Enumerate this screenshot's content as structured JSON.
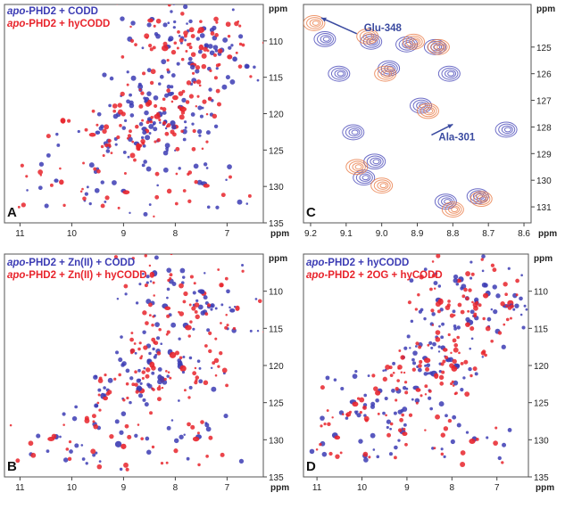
{
  "colors": {
    "series_1": "#3c3cb4",
    "series_2": "#e8242c",
    "orange": "#e8743c",
    "annotation": "#3a4aa0"
  },
  "chart_data": [
    {
      "panel": "A",
      "type": "scatter",
      "xlabel": "ppm",
      "ylabel": "ppm",
      "xlim": [
        11.3,
        6.3
      ],
      "ylim": [
        105,
        135
      ],
      "xticks": [
        11,
        10,
        9,
        8,
        7
      ],
      "yticks": [
        110,
        115,
        120,
        125,
        130,
        135
      ],
      "legend": {
        "placement": "top-left",
        "entries": [
          {
            "prefix": "apo",
            "rest": "-PHD2 + CODD",
            "color": "#3c3cb4"
          },
          {
            "prefix": "apo",
            "rest": "-PHD2 + hyCODD",
            "color": "#e8242c"
          }
        ]
      },
      "series": [
        {
          "name": "apo-PHD2 + CODD",
          "color": "#3c3cb4",
          "points": [
            [
              8.45,
              107.0
            ],
            [
              7.45,
              108.3
            ],
            [
              7.4,
              110.6
            ],
            [
              6.85,
              112.5
            ],
            [
              8.15,
              110.8
            ],
            [
              7.7,
              113.1
            ],
            [
              8.1,
              117.3
            ],
            [
              8.55,
              118.1
            ],
            [
              8.3,
              120.1
            ],
            [
              8.05,
              121.3
            ],
            [
              7.9,
              119.1
            ],
            [
              8.6,
              122.1
            ],
            [
              8.75,
              124.1
            ],
            [
              9.5,
              122.6
            ],
            [
              10.3,
              129.2
            ],
            [
              9.0,
              130.6
            ],
            [
              7.45,
              129.6
            ]
          ]
        },
        {
          "name": "apo-PHD2 + hyCODD",
          "color": "#e8242c",
          "points": [
            [
              8.48,
              107.2
            ],
            [
              7.5,
              108.5
            ],
            [
              7.5,
              110.9
            ],
            [
              6.95,
              112.2
            ],
            [
              8.2,
              111.0
            ],
            [
              7.65,
              113.3
            ],
            [
              8.0,
              117.8
            ],
            [
              8.5,
              118.5
            ],
            [
              8.35,
              120.4
            ],
            [
              8.0,
              121.8
            ],
            [
              7.85,
              119.4
            ],
            [
              8.55,
              122.4
            ],
            [
              8.7,
              124.4
            ],
            [
              9.6,
              122.9
            ],
            [
              10.2,
              129.4
            ],
            [
              8.95,
              130.8
            ],
            [
              7.4,
              129.9
            ]
          ]
        }
      ]
    },
    {
      "panel": "B",
      "type": "scatter",
      "xlabel": "ppm",
      "ylabel": "ppm",
      "xlim": [
        11.3,
        6.3
      ],
      "ylim": [
        105,
        135
      ],
      "xticks": [
        11,
        10,
        9,
        8,
        7
      ],
      "yticks": [
        110,
        115,
        120,
        125,
        130,
        135
      ],
      "legend": {
        "placement": "top-left",
        "entries": [
          {
            "prefix": "apo",
            "rest": "-PHD2 + Zn(II) + CODD",
            "color": "#3c3cb4"
          },
          {
            "prefix": "apo",
            "rest": "-PHD2 + Zn(II) + hyCODD",
            "color": "#e8242c"
          }
        ]
      },
      "series": [
        {
          "name": "apo-PHD2 + Zn(II) + CODD",
          "color": "#3c3cb4",
          "points": [
            [
              8.4,
              107.6
            ],
            [
              7.5,
              110.0
            ],
            [
              6.9,
              112.6
            ],
            [
              8.2,
              112.0
            ],
            [
              7.8,
              114.6
            ],
            [
              8.1,
              118.2
            ],
            [
              8.5,
              119.5
            ],
            [
              8.3,
              121.6
            ],
            [
              7.9,
              120.1
            ],
            [
              8.7,
              123.1
            ],
            [
              9.4,
              124.1
            ],
            [
              10.3,
              129.6
            ],
            [
              9.1,
              130.6
            ],
            [
              7.55,
              129.6
            ]
          ]
        },
        {
          "name": "apo-PHD2 + Zn(II) + hyCODD",
          "color": "#e8242c",
          "points": [
            [
              8.45,
              107.8
            ],
            [
              7.45,
              110.3
            ],
            [
              6.8,
              112.3
            ],
            [
              8.15,
              112.3
            ],
            [
              7.75,
              114.9
            ],
            [
              8.05,
              118.6
            ],
            [
              8.45,
              119.9
            ],
            [
              8.25,
              121.9
            ],
            [
              7.85,
              120.4
            ],
            [
              8.65,
              123.4
            ],
            [
              9.35,
              124.4
            ],
            [
              10.4,
              129.9
            ],
            [
              9.0,
              130.9
            ],
            [
              7.6,
              129.9
            ]
          ]
        }
      ]
    },
    {
      "panel": "C",
      "type": "scatter",
      "xlabel": "ppm",
      "ylabel": "ppm",
      "xlim": [
        9.22,
        8.58
      ],
      "ylim": [
        123.4,
        131.6
      ],
      "xticks": [
        9.2,
        9.1,
        9.0,
        8.9,
        8.8,
        8.7,
        8.6
      ],
      "yticks": [
        125,
        126,
        127,
        128,
        129,
        130,
        131
      ],
      "annotations": [
        {
          "text": "Glu-348",
          "x": 9.05,
          "y": 124.4
        },
        {
          "text": "Ala-301",
          "x": 8.84,
          "y": 128.5
        }
      ],
      "series": [
        {
          "name": "contours-blue",
          "color": "#3c3cb4",
          "points": [
            [
              9.16,
              124.7
            ],
            [
              9.03,
              124.8
            ],
            [
              8.93,
              124.9
            ],
            [
              8.85,
              125.0
            ],
            [
              9.12,
              126.0
            ],
            [
              8.98,
              125.8
            ],
            [
              8.81,
              126.0
            ],
            [
              8.89,
              127.2
            ],
            [
              9.08,
              128.2
            ],
            [
              8.65,
              128.1
            ],
            [
              9.02,
              129.3
            ],
            [
              9.05,
              129.9
            ],
            [
              8.82,
              130.8
            ],
            [
              8.73,
              130.6
            ]
          ]
        },
        {
          "name": "contours-orange",
          "color": "#e8743c",
          "points": [
            [
              9.19,
              124.1
            ],
            [
              9.04,
              124.6
            ],
            [
              8.91,
              124.8
            ],
            [
              8.84,
              125.0
            ],
            [
              8.99,
              126.0
            ],
            [
              8.87,
              127.4
            ],
            [
              9.07,
              129.5
            ],
            [
              9.0,
              130.2
            ],
            [
              8.8,
              131.1
            ],
            [
              8.72,
              130.7
            ]
          ]
        }
      ]
    },
    {
      "panel": "D",
      "type": "scatter",
      "xlabel": "ppm",
      "ylabel": "ppm",
      "xlim": [
        11.3,
        6.3
      ],
      "ylim": [
        105,
        135
      ],
      "xticks": [
        11,
        10,
        9,
        8,
        7
      ],
      "yticks": [
        110,
        115,
        120,
        125,
        130,
        135
      ],
      "legend": {
        "placement": "top-left",
        "entries": [
          {
            "prefix": "apo",
            "rest": "-PHD2 + hyCODD",
            "color": "#3c3cb4"
          },
          {
            "prefix": "apo",
            "rest": "-PHD2 + 2OG + hyCODD",
            "color": "#e8242c"
          }
        ]
      },
      "series": [
        {
          "name": "apo-PHD2 + hyCODD",
          "color": "#3c3cb4",
          "points": [
            [
              7.8,
              108.4
            ],
            [
              7.2,
              110.3
            ],
            [
              6.8,
              112.0
            ],
            [
              8.3,
              111.2
            ],
            [
              7.6,
              114.2
            ],
            [
              8.2,
              117.6
            ],
            [
              8.6,
              119.0
            ],
            [
              8.4,
              121.1
            ],
            [
              7.9,
              120.1
            ],
            [
              8.8,
              123.0
            ],
            [
              9.6,
              123.4
            ],
            [
              10.2,
              124.9
            ],
            [
              10.6,
              129.4
            ],
            [
              9.1,
              128.9
            ],
            [
              7.5,
              129.9
            ]
          ]
        },
        {
          "name": "apo-PHD2 + 2OG + hyCODD",
          "color": "#e8242c",
          "points": [
            [
              7.85,
              108.6
            ],
            [
              7.25,
              110.6
            ],
            [
              6.7,
              111.6
            ],
            [
              8.25,
              111.4
            ],
            [
              7.65,
              114.5
            ],
            [
              8.15,
              117.9
            ],
            [
              8.55,
              119.3
            ],
            [
              8.35,
              121.4
            ],
            [
              7.95,
              120.4
            ],
            [
              8.75,
              123.3
            ],
            [
              9.65,
              123.7
            ],
            [
              10.15,
              125.2
            ],
            [
              10.55,
              129.7
            ],
            [
              9.05,
              129.2
            ],
            [
              7.55,
              130.2
            ]
          ]
        }
      ]
    }
  ]
}
